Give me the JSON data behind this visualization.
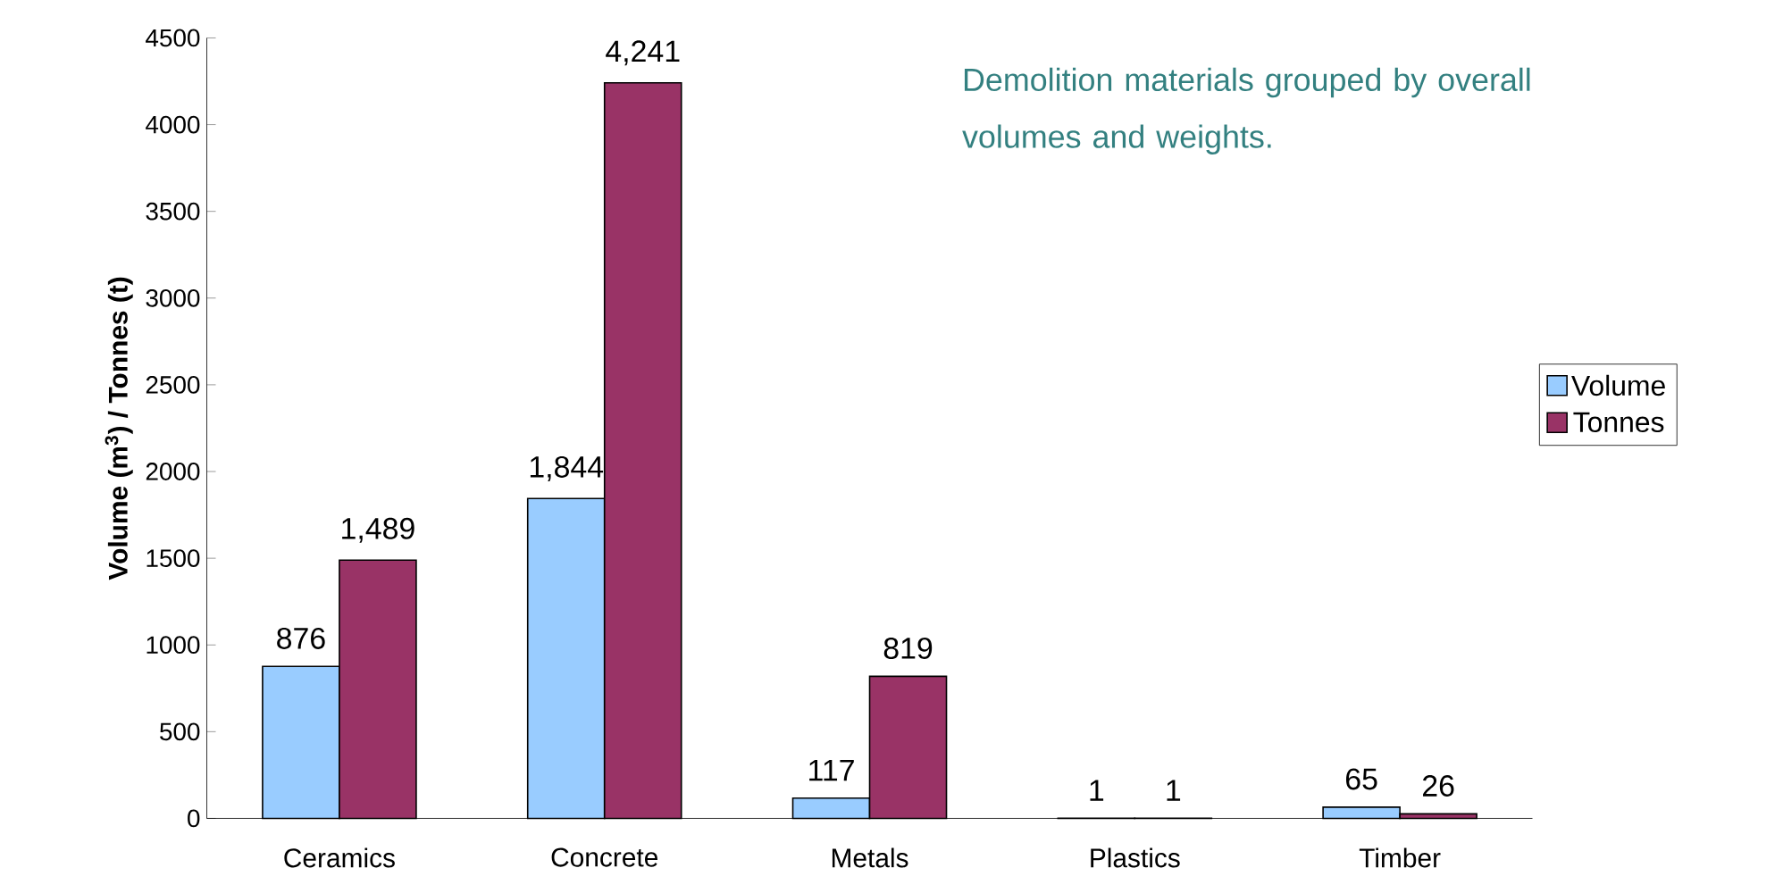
{
  "chart_data": {
    "type": "bar",
    "ylabel": "Volume (m$^{3}$) / Tonnes (t)",
    "categories": [
      "Ceramics",
      "Concrete",
      "Metals",
      "Plastics",
      "Timber"
    ],
    "series": [
      {
        "name": "Volume",
        "color": "#99ccff",
        "values": [
          876,
          1844,
          117,
          1,
          65
        ],
        "value_labels": [
          "876",
          "1,844",
          "117",
          "1",
          "65"
        ]
      },
      {
        "name": "Tonnes",
        "color": "#993366",
        "values": [
          1489,
          4241,
          819,
          1,
          26
        ],
        "value_labels": [
          "1,489",
          "4,241",
          "819",
          "1",
          "26"
        ]
      }
    ],
    "ylim": [
      0,
      4500
    ],
    "yticks": [
      0,
      500,
      1000,
      1500,
      2000,
      2500,
      3000,
      3500,
      4000,
      4500
    ],
    "legend": "right",
    "annotations": [
      "Demolition materials grouped by overall volumes and weights."
    ]
  }
}
